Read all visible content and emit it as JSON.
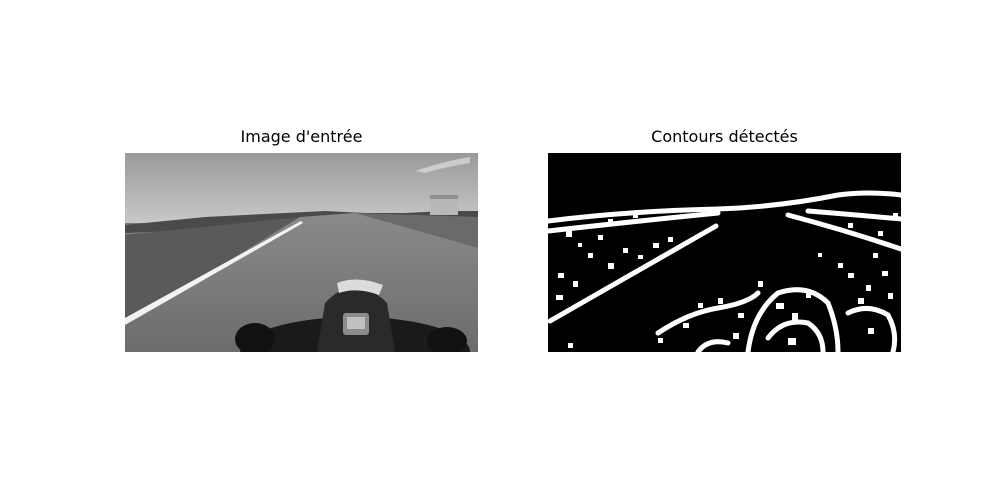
{
  "figure": {
    "left_panel": {
      "title": "Image d'entrée"
    },
    "right_panel": {
      "title": "Contours détectés"
    }
  }
}
